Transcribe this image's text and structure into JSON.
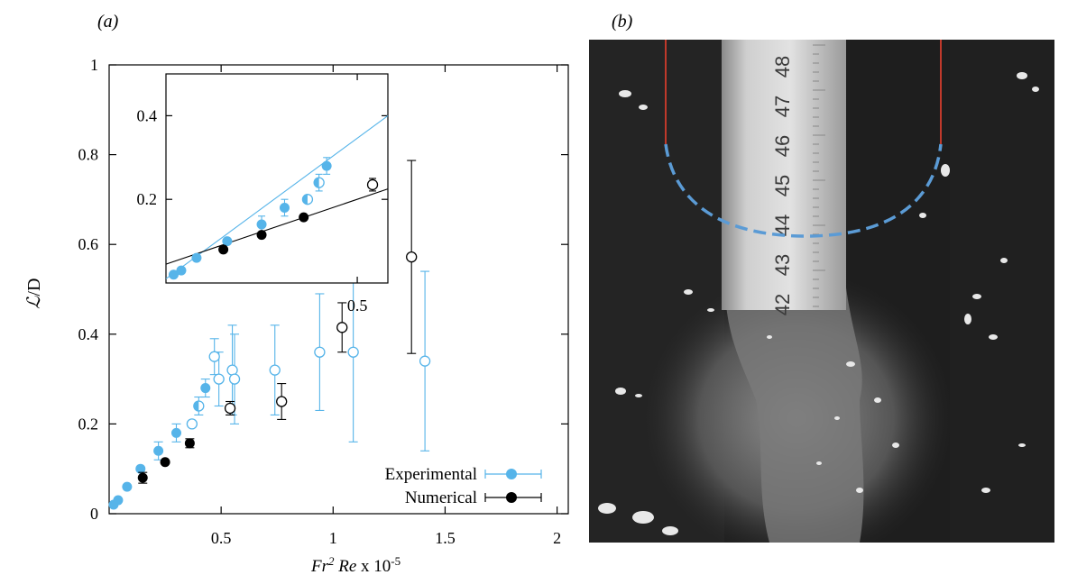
{
  "panel_a_label": "(a)",
  "panel_b_label": "(b)",
  "colors": {
    "experimental": "#56b4e9",
    "numerical": "#000000",
    "cut_line": "#c0392b",
    "fit_dashed": "#5b9bd5"
  },
  "chart_data": [
    {
      "type": "scatter",
      "xlabel": "Fr² Re x 10⁻⁵",
      "ylabel": "ℒ/D",
      "xlim": [
        0,
        2.05
      ],
      "ylim": [
        0,
        1
      ],
      "xticks": [
        "0.5",
        "1",
        "1.5",
        "2"
      ],
      "yticks": [
        "0",
        "0.2",
        "0.4",
        "0.6",
        "0.8",
        "1"
      ],
      "grid": false,
      "legend_position": "bottom-right",
      "series": [
        {
          "name": "Experimental",
          "marker": "filled",
          "points": [
            {
              "x": 0.02,
              "y": 0.02
            },
            {
              "x": 0.04,
              "y": 0.03
            },
            {
              "x": 0.08,
              "y": 0.06
            },
            {
              "x": 0.14,
              "y": 0.1
            },
            {
              "x": 0.22,
              "y": 0.14,
              "err": 0.02
            },
            {
              "x": 0.3,
              "y": 0.18,
              "err": 0.02
            },
            {
              "x": 0.43,
              "y": 0.28,
              "err": 0.02
            }
          ]
        },
        {
          "name": "Experimental (half-filled)",
          "marker": "half",
          "points": [
            {
              "x": 0.4,
              "y": 0.24,
              "err": 0.02
            }
          ]
        },
        {
          "name": "Experimental (open)",
          "marker": "open",
          "points": [
            {
              "x": 0.37,
              "y": 0.2
            },
            {
              "x": 0.47,
              "y": 0.35,
              "err": 0.04
            },
            {
              "x": 0.49,
              "y": 0.3,
              "err": 0.06
            },
            {
              "x": 0.55,
              "y": 0.32,
              "err": 0.1
            },
            {
              "x": 0.56,
              "y": 0.3,
              "err": 0.1
            },
            {
              "x": 0.74,
              "y": 0.32,
              "err": 0.1
            },
            {
              "x": 0.94,
              "y": 0.36,
              "err": 0.13
            },
            {
              "x": 1.09,
              "y": 0.36,
              "err": 0.2
            },
            {
              "x": 1.41,
              "y": 0.34,
              "err": 0.2
            }
          ]
        },
        {
          "name": "Numerical",
          "marker": "filled",
          "points": [
            {
              "x": 0.15,
              "y": 0.08,
              "err": 0.012
            },
            {
              "x": 0.25,
              "y": 0.115
            },
            {
              "x": 0.36,
              "y": 0.157,
              "err": 0.01
            }
          ]
        },
        {
          "name": "Numerical (open)",
          "marker": "open",
          "points": [
            {
              "x": 0.54,
              "y": 0.235,
              "err": 0.015
            },
            {
              "x": 0.77,
              "y": 0.25,
              "err": 0.04
            },
            {
              "x": 1.04,
              "y": 0.415,
              "err": 0.055
            },
            {
              "x": 1.35,
              "y": 0.572,
              "err": 0.215
            }
          ]
        }
      ],
      "legend": [
        "Experimental",
        "Numerical"
      ]
    },
    {
      "type": "scatter",
      "name": "inset",
      "xlim": [
        0,
        0.58
      ],
      "ylim": [
        0,
        0.5
      ],
      "xticks": [
        "0.5"
      ],
      "yticks": [
        "0.2",
        "0.4"
      ],
      "fit_lines": [
        {
          "series": "Experimental",
          "x": [
            0,
            0.58
          ],
          "y": [
            0.01,
            0.4
          ]
        },
        {
          "series": "Numerical",
          "x": [
            0,
            0.58
          ],
          "y": [
            0.045,
            0.225
          ]
        }
      ],
      "series": [
        {
          "name": "Experimental",
          "points": [
            {
              "x": 0.02,
              "y": 0.02,
              "m": "filled"
            },
            {
              "x": 0.04,
              "y": 0.03,
              "m": "filled"
            },
            {
              "x": 0.08,
              "y": 0.06,
              "m": "filled"
            },
            {
              "x": 0.16,
              "y": 0.1,
              "m": "filled"
            },
            {
              "x": 0.25,
              "y": 0.14,
              "m": "filled",
              "err": 0.02
            },
            {
              "x": 0.31,
              "y": 0.18,
              "m": "filled",
              "err": 0.02
            },
            {
              "x": 0.37,
              "y": 0.2,
              "m": "half"
            },
            {
              "x": 0.4,
              "y": 0.24,
              "m": "half",
              "err": 0.02
            },
            {
              "x": 0.42,
              "y": 0.28,
              "m": "filled",
              "err": 0.02
            }
          ]
        },
        {
          "name": "Numerical",
          "points": [
            {
              "x": 0.15,
              "y": 0.08,
              "m": "filled"
            },
            {
              "x": 0.25,
              "y": 0.115,
              "m": "filled"
            },
            {
              "x": 0.36,
              "y": 0.157,
              "m": "filled"
            },
            {
              "x": 0.54,
              "y": 0.235,
              "m": "open",
              "err": 0.015
            }
          ]
        }
      ]
    }
  ],
  "photo": {
    "ruler_numbers": [
      "48",
      "47",
      "46",
      "45",
      "44",
      "43",
      "42"
    ]
  }
}
